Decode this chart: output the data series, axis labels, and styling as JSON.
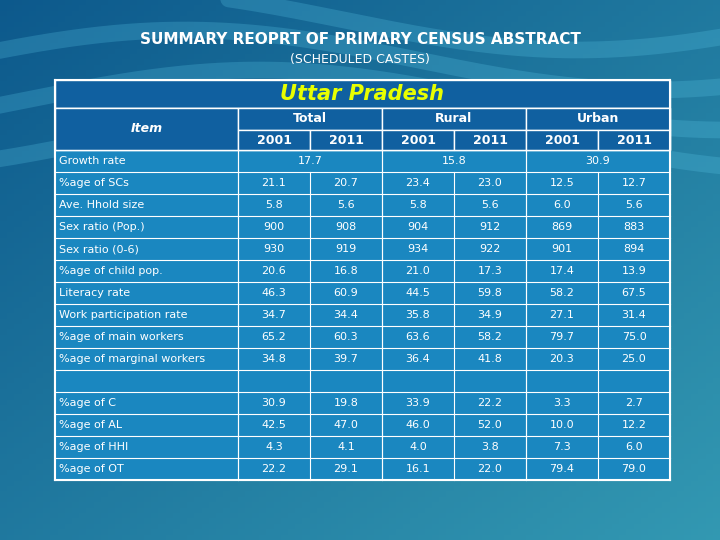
{
  "title_line1": "SUMMARY REOPRT OF PRIMARY CENSUS ABSTRACT",
  "title_line2": "(SCHEDULED CASTES)",
  "state_header": "Uttar Pradesh",
  "col_groups": [
    "Total",
    "Rural",
    "Urban"
  ],
  "col_years": [
    "2001",
    "2011",
    "2001",
    "2011",
    "2001",
    "2011"
  ],
  "item_label": "Item",
  "rows": [
    {
      "item": "Growth rate",
      "vals": [
        "17.7",
        "",
        "15.8",
        "",
        "30.9",
        ""
      ],
      "merged": [
        true,
        true,
        true
      ]
    },
    {
      "item": "%age of SCs",
      "vals": [
        "21.1",
        "20.7",
        "23.4",
        "23.0",
        "12.5",
        "12.7"
      ],
      "merged": [
        false,
        false,
        false
      ]
    },
    {
      "item": "Ave. Hhold size",
      "vals": [
        "5.8",
        "5.6",
        "5.8",
        "5.6",
        "6.0",
        "5.6"
      ],
      "merged": [
        false,
        false,
        false
      ]
    },
    {
      "item": "Sex ratio (Pop.)",
      "vals": [
        "900",
        "908",
        "904",
        "912",
        "869",
        "883"
      ],
      "merged": [
        false,
        false,
        false
      ]
    },
    {
      "item": "Sex ratio (0-6)",
      "vals": [
        "930",
        "919",
        "934",
        "922",
        "901",
        "894"
      ],
      "merged": [
        false,
        false,
        false
      ]
    },
    {
      "item": "%age of child pop.",
      "vals": [
        "20.6",
        "16.8",
        "21.0",
        "17.3",
        "17.4",
        "13.9"
      ],
      "merged": [
        false,
        false,
        false
      ]
    },
    {
      "item": "Literacy rate",
      "vals": [
        "46.3",
        "60.9",
        "44.5",
        "59.8",
        "58.2",
        "67.5"
      ],
      "merged": [
        false,
        false,
        false
      ]
    },
    {
      "item": "Work participation rate",
      "vals": [
        "34.7",
        "34.4",
        "35.8",
        "34.9",
        "27.1",
        "31.4"
      ],
      "merged": [
        false,
        false,
        false
      ]
    },
    {
      "item": "%age of main workers",
      "vals": [
        "65.2",
        "60.3",
        "63.6",
        "58.2",
        "79.7",
        "75.0"
      ],
      "merged": [
        false,
        false,
        false
      ]
    },
    {
      "item": "%age of marginal workers",
      "vals": [
        "34.8",
        "39.7",
        "36.4",
        "41.8",
        "20.3",
        "25.0"
      ],
      "merged": [
        false,
        false,
        false
      ]
    },
    {
      "item": "",
      "vals": [
        "",
        "",
        "",
        "",
        "",
        ""
      ],
      "merged": [
        false,
        false,
        false
      ]
    },
    {
      "item": "%age of C",
      "vals": [
        "30.9",
        "19.8",
        "33.9",
        "22.2",
        "3.3",
        "2.7"
      ],
      "merged": [
        false,
        false,
        false
      ]
    },
    {
      "item": "%age of AL",
      "vals": [
        "42.5",
        "47.0",
        "46.0",
        "52.0",
        "10.0",
        "12.2"
      ],
      "merged": [
        false,
        false,
        false
      ]
    },
    {
      "item": "%age of HHI",
      "vals": [
        "4.3",
        "4.1",
        "4.0",
        "3.8",
        "7.3",
        "6.0"
      ],
      "merged": [
        false,
        false,
        false
      ]
    },
    {
      "item": "%age of OT",
      "vals": [
        "22.2",
        "29.1",
        "16.1",
        "22.0",
        "79.4",
        "79.0"
      ],
      "merged": [
        false,
        false,
        false
      ]
    }
  ],
  "bg_gradient_left": "#0d5a8a",
  "bg_gradient_right": "#1e9db8",
  "table_bg": "#1a87c0",
  "header_bg": "#1060a0",
  "state_header_color": "#e8ff00",
  "text_white": "#ffffff",
  "title_color": "#ffffff",
  "border_color": "#ffffff",
  "title1_fontsize": 11,
  "title2_fontsize": 9,
  "state_fontsize": 15,
  "header_fontsize": 9,
  "year_fontsize": 9,
  "data_fontsize": 8,
  "item_fontsize": 8
}
